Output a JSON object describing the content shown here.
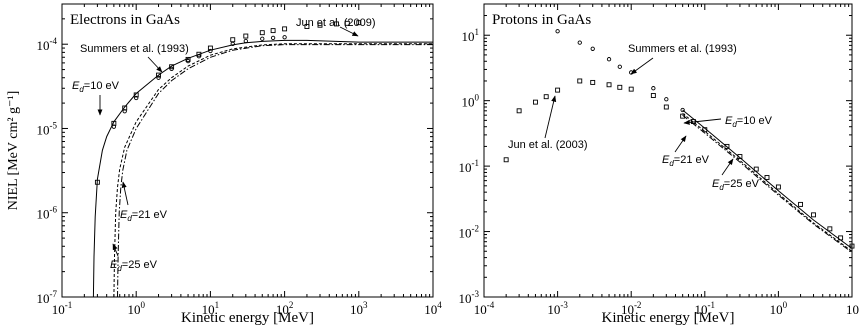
{
  "colors": {
    "ink": "#000000",
    "background": "#ffffff"
  },
  "chart_data": [
    {
      "type": "scatter",
      "title": "Electrons in GaAs",
      "xlabel": "Kinetic energy [MeV]",
      "ylabel": "NIEL [MeV cm² g⁻¹]",
      "xscale": "log",
      "yscale": "log",
      "xlim": [
        0.1,
        10000
      ],
      "ylim": [
        1e-07,
        0.0003
      ],
      "xticks": [
        "10^-1",
        "10^0",
        "10^1",
        "10^2",
        "10^3",
        "10^4"
      ],
      "yticks": [
        "10^-7",
        "10^-6",
        "10^-5",
        "10^-4"
      ],
      "series": [
        {
          "name": "Jun et al. (2009)",
          "style": "open-square",
          "x": [
            0.3,
            0.5,
            0.7,
            1,
            2,
            3,
            5,
            7,
            10,
            20,
            30,
            50,
            70,
            100,
            200,
            300,
            500,
            700,
            1000
          ],
          "y": [
            2.3e-06,
            1.15e-05,
            1.75e-05,
            2.5e-05,
            4.3e-05,
            5.4e-05,
            6.6e-05,
            7.6e-05,
            9e-05,
            0.000113,
            0.000125,
            0.000137,
            0.000145,
            0.000152,
            0.000162,
            0.000168,
            0.000174,
            0.000177,
            0.00018
          ]
        },
        {
          "name": "Summers et al. (1993)",
          "style": "open-circle",
          "x": [
            0.5,
            0.7,
            1,
            2,
            3,
            5,
            7,
            10,
            20,
            30,
            50,
            70,
            100
          ],
          "y": [
            1.05e-05,
            1.6e-05,
            2.3e-05,
            4e-05,
            5.1e-05,
            6.3e-05,
            7.2e-05,
            8.3e-05,
            0.000101,
            0.000109,
            0.000116,
            0.000119,
            0.000121
          ]
        },
        {
          "name": "E_d=10 eV",
          "style": "solid",
          "x": [
            0.265,
            0.27,
            0.28,
            0.3,
            0.35,
            0.4,
            0.5,
            0.7,
            1,
            2,
            3,
            5,
            10,
            20,
            30,
            50,
            100,
            200,
            500,
            1000,
            10000
          ],
          "y": [
            1e-07,
            3e-07,
            9e-07,
            2.5e-06,
            5.5e-06,
            8e-06,
            1.2e-05,
            1.8e-05,
            2.6e-05,
            4.3e-05,
            5.5e-05,
            6.8e-05,
            8.5e-05,
            9.8e-05,
            0.000104,
            0.000108,
            0.000111,
            0.000111,
            0.000108,
            0.000106,
            0.000106
          ]
        },
        {
          "name": "E_d=21 eV",
          "style": "dashed",
          "x": [
            0.5,
            0.51,
            0.53,
            0.56,
            0.6,
            0.7,
            1,
            2,
            3,
            5,
            10,
            20,
            50,
            100,
            1000,
            10000
          ],
          "y": [
            1e-07,
            3e-07,
            1e-06,
            2e-06,
            3.3e-06,
            6e-06,
            1.2e-05,
            2.9e-05,
            4e-05,
            5.5e-05,
            7.4e-05,
            8.8e-05,
            9.8e-05,
            0.000101,
            0.000101,
            0.000101
          ]
        },
        {
          "name": "E_d=25 eV",
          "style": "dash-dot",
          "x": [
            0.56,
            0.57,
            0.59,
            0.62,
            0.66,
            0.75,
            1,
            2,
            3,
            5,
            10,
            20,
            50,
            100,
            1000,
            10000
          ],
          "y": [
            1e-07,
            3e-07,
            1e-06,
            2e-06,
            3.2e-06,
            5.5e-06,
            1e-05,
            2.6e-05,
            3.7e-05,
            5.1e-05,
            7e-05,
            8.5e-05,
            9.6e-05,
            9.9e-05,
            9.9e-05,
            9.9e-05
          ]
        }
      ],
      "annotations": [
        {
          "text": "Jun et al. (2009)"
        },
        {
          "text": "Summers et al. (1993)"
        },
        {
          "main": "E",
          "sub": "d",
          "rest": "=10 eV"
        },
        {
          "main": "E",
          "sub": "d",
          "rest": "=21 eV"
        },
        {
          "main": "E",
          "sub": "d",
          "rest": "=25 eV"
        }
      ]
    },
    {
      "type": "scatter",
      "title": "Protons in GaAs",
      "xlabel": "Kinetic energy [MeV]",
      "xscale": "log",
      "yscale": "log",
      "xlim": [
        0.0001,
        10
      ],
      "ylim": [
        0.001,
        30
      ],
      "xticks": [
        "10^-4",
        "10^-3",
        "10^-2",
        "10^-1",
        "10^0",
        "10"
      ],
      "yticks": [
        "10^-3",
        "10^-2",
        "10^-1",
        "10^0",
        "10^1"
      ],
      "series": [
        {
          "name": "Summers et al. (1993)",
          "style": "open-circle",
          "x": [
            0.001,
            0.002,
            0.003,
            0.005,
            0.007,
            0.01,
            0.02,
            0.03,
            0.05
          ],
          "y": [
            11.5,
            7.7,
            6.2,
            4.3,
            3.3,
            2.7,
            1.55,
            1.05,
            0.72
          ]
        },
        {
          "name": "Jun et al. (2003)",
          "style": "open-square",
          "x": [
            0.0002,
            0.0003,
            0.0005,
            0.0007,
            0.001,
            0.002,
            0.003,
            0.005,
            0.007,
            0.01,
            0.02,
            0.03,
            0.05,
            0.07,
            0.1,
            0.2,
            0.3,
            0.5,
            0.7,
            1,
            2,
            3,
            5,
            7,
            10
          ],
          "y": [
            0.125,
            0.7,
            0.95,
            1.15,
            1.45,
            2.0,
            1.9,
            1.75,
            1.6,
            1.5,
            1.2,
            0.8,
            0.58,
            0.48,
            0.36,
            0.2,
            0.14,
            0.09,
            0.067,
            0.048,
            0.026,
            0.018,
            0.011,
            0.008,
            0.006
          ]
        },
        {
          "name": "E_d=10 eV",
          "style": "solid",
          "x": [
            0.05,
            0.1,
            0.3,
            1,
            3,
            10
          ],
          "y": [
            0.72,
            0.38,
            0.135,
            0.042,
            0.015,
            0.0055
          ]
        },
        {
          "name": "E_d=21 eV",
          "style": "dashed",
          "x": [
            0.05,
            0.1,
            0.3,
            1,
            3,
            10
          ],
          "y": [
            0.64,
            0.34,
            0.122,
            0.038,
            0.0135,
            0.005
          ]
        },
        {
          "name": "E_d=25 eV",
          "style": "dash-dot",
          "x": [
            0.05,
            0.1,
            0.3,
            1,
            3,
            10
          ],
          "y": [
            0.6,
            0.32,
            0.115,
            0.036,
            0.013,
            0.0048
          ]
        }
      ],
      "annotations": [
        {
          "text": "Summers et al. (1993)"
        },
        {
          "text": "Jun et al. (2003)"
        },
        {
          "main": "E",
          "sub": "d",
          "rest": "=10 eV"
        },
        {
          "main": "E",
          "sub": "d",
          "rest": "=21 eV"
        },
        {
          "main": "E",
          "sub": "d",
          "rest": "=25 eV"
        }
      ]
    }
  ]
}
